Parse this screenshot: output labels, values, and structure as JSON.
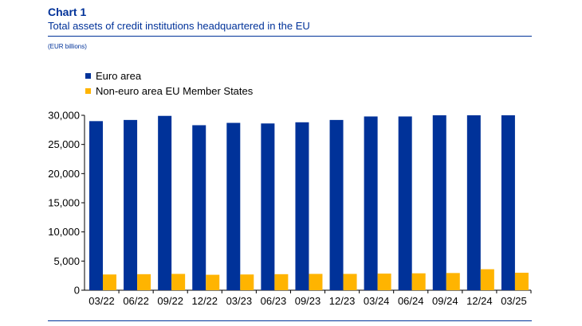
{
  "header": {
    "chart_label": "Chart 1",
    "subtitle": "Total assets of credit institutions headquartered in the EU",
    "unit": "(EUR billions)"
  },
  "colors": {
    "euro_area": "#003299",
    "non_euro": "#FFB400",
    "accent": "#003299"
  },
  "chart_data": {
    "type": "bar",
    "categories": [
      "03/22",
      "06/22",
      "09/22",
      "12/22",
      "03/23",
      "06/23",
      "09/23",
      "12/23",
      "03/24",
      "06/24",
      "09/24",
      "12/24",
      "03/25"
    ],
    "series": [
      {
        "name": "Euro area",
        "color": "#003299",
        "values": [
          29000,
          29200,
          29900,
          28300,
          28700,
          28600,
          28800,
          29200,
          29800,
          29800,
          30000,
          30000,
          30000
        ]
      },
      {
        "name": "Non-euro area EU Member States",
        "color": "#FFB400",
        "values": [
          2700,
          2750,
          2800,
          2650,
          2700,
          2750,
          2800,
          2800,
          2850,
          2900,
          2950,
          3600,
          3000
        ]
      }
    ],
    "ylim": [
      0,
      30000
    ],
    "yticks": [
      "0",
      "5,000",
      "10,000",
      "15,000",
      "20,000",
      "25,000",
      "30,000"
    ],
    "ytick_values": [
      0,
      5000,
      10000,
      15000,
      20000,
      25000,
      30000
    ],
    "grid": false,
    "legend_position": "top-left"
  }
}
